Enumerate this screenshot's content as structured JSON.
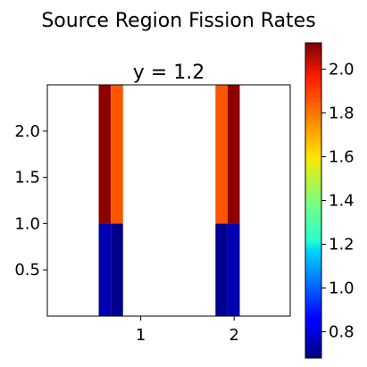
{
  "chart_data": {
    "type": "heatmap",
    "suptitle": "Source Region Fission Rates",
    "title": "y = 1.2",
    "xlabel": "",
    "ylabel": "",
    "xlim": [
      0,
      2.6
    ],
    "ylim": [
      0,
      2.5
    ],
    "x_ticks": [
      {
        "value": 1,
        "label": "1"
      },
      {
        "value": 2,
        "label": "2"
      }
    ],
    "y_ticks": [
      {
        "value": 0.5,
        "label": "0.5"
      },
      {
        "value": 1.0,
        "label": "1.0"
      },
      {
        "value": 1.5,
        "label": "1.5"
      },
      {
        "value": 2.0,
        "label": "2.0"
      }
    ],
    "grid": false,
    "colormap": "jet",
    "color_range": [
      0.68,
      2.12
    ],
    "colorbar_ticks": [
      {
        "value": 0.8,
        "label": "0.8"
      },
      {
        "value": 1.0,
        "label": "1.0"
      },
      {
        "value": 1.2,
        "label": "1.2"
      },
      {
        "value": 1.4,
        "label": "1.4"
      },
      {
        "value": 1.6,
        "label": "1.6"
      },
      {
        "value": 1.8,
        "label": "1.8"
      },
      {
        "value": 2.0,
        "label": "2.0"
      }
    ],
    "cells": [
      {
        "x0": 0.55,
        "x1": 0.68,
        "y0": 0.0,
        "y1": 1.0,
        "value": 0.75
      },
      {
        "x0": 0.68,
        "x1": 0.81,
        "y0": 0.0,
        "y1": 1.0,
        "value": 0.7
      },
      {
        "x0": 0.55,
        "x1": 0.68,
        "y0": 1.0,
        "y1": 2.5,
        "value": 2.1
      },
      {
        "x0": 0.68,
        "x1": 0.81,
        "y0": 1.0,
        "y1": 2.5,
        "value": 1.82
      },
      {
        "x0": 1.8,
        "x1": 1.93,
        "y0": 0.0,
        "y1": 1.0,
        "value": 0.7
      },
      {
        "x0": 1.93,
        "x1": 2.06,
        "y0": 0.0,
        "y1": 1.0,
        "value": 0.75
      },
      {
        "x0": 1.8,
        "x1": 1.93,
        "y0": 1.0,
        "y1": 2.5,
        "value": 1.82
      },
      {
        "x0": 1.93,
        "x1": 2.06,
        "y0": 1.0,
        "y1": 2.5,
        "value": 2.1
      }
    ]
  }
}
